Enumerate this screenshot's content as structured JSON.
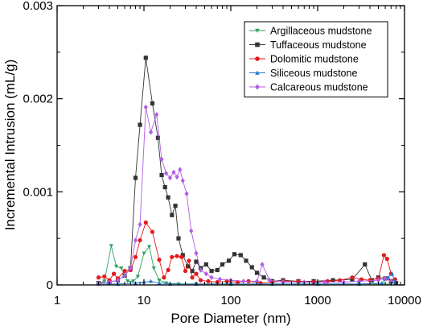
{
  "chart_data": {
    "type": "line",
    "xlabel": "Pore Diameter (nm)",
    "ylabel": "Incremental Intrusion (mL/g)",
    "xscale": "log",
    "xlim": [
      1,
      10000
    ],
    "ylim": [
      0,
      0.003
    ],
    "x_ticks": [
      "1",
      "10",
      "100",
      "1000",
      "10000"
    ],
    "y_ticks": [
      "0",
      "0.001",
      "0.002",
      "0.003"
    ],
    "legend_position": "top-right",
    "series": [
      {
        "name": "Argillaceous mudstone",
        "color": "#2ca25f",
        "marker": "triangle-down",
        "points": [
          [
            3,
            2e-05
          ],
          [
            3.5,
            4e-05
          ],
          [
            4.2,
            0.00042
          ],
          [
            4.8,
            0.0002
          ],
          [
            5.5,
            0.00018
          ],
          [
            6.5,
            4e-05
          ],
          [
            7.5,
            4e-05
          ],
          [
            8.5,
            9e-05
          ],
          [
            10,
            0.00034
          ],
          [
            11.5,
            0.00041
          ],
          [
            13,
            0.00018
          ],
          [
            15,
            5e-05
          ],
          [
            18,
            2e-05
          ],
          [
            25,
            1e-05
          ],
          [
            40,
            1e-05
          ],
          [
            100,
            1e-05
          ],
          [
            300,
            1e-05
          ],
          [
            1000,
            1e-05
          ],
          [
            3000,
            1e-05
          ],
          [
            7000,
            1e-05
          ]
        ]
      },
      {
        "name": "Tuffaceous mudstone",
        "color": "#333333",
        "marker": "square",
        "points": [
          [
            3,
            2e-05
          ],
          [
            4,
            3e-05
          ],
          [
            5,
            5e-05
          ],
          [
            6,
            0.0001
          ],
          [
            7,
            0.00018
          ],
          [
            8,
            0.00115
          ],
          [
            9,
            0.00172
          ],
          [
            10.5,
            0.00244
          ],
          [
            12.5,
            0.00195
          ],
          [
            14.5,
            0.00158
          ],
          [
            16,
            0.00118
          ],
          [
            17.5,
            0.00105
          ],
          [
            19,
            0.00094
          ],
          [
            21,
            0.00075
          ],
          [
            23,
            0.00085
          ],
          [
            25,
            0.0005
          ],
          [
            28,
            0.00032
          ],
          [
            32,
            0.0002
          ],
          [
            36,
            0.00015
          ],
          [
            40,
            0.00025
          ],
          [
            45,
            0.00018
          ],
          [
            52,
            0.00022
          ],
          [
            60,
            0.00015
          ],
          [
            70,
            0.00016
          ],
          [
            80,
            0.00022
          ],
          [
            95,
            0.00026
          ],
          [
            110,
            0.00033
          ],
          [
            130,
            0.00032
          ],
          [
            150,
            0.00026
          ],
          [
            175,
            0.00019
          ],
          [
            200,
            0.00013
          ],
          [
            240,
            8e-05
          ],
          [
            300,
            4e-05
          ],
          [
            400,
            5e-05
          ],
          [
            600,
            4e-05
          ],
          [
            900,
            4e-05
          ],
          [
            1500,
            5e-05
          ],
          [
            2500,
            6e-05
          ],
          [
            3500,
            0.00022
          ],
          [
            4200,
            5e-05
          ],
          [
            5000,
            8e-05
          ],
          [
            6000,
            7e-05
          ],
          [
            7000,
            4e-05
          ],
          [
            8000,
            2e-05
          ]
        ]
      },
      {
        "name": "Dolomitic mudstone",
        "color": "#e41a1c",
        "marker": "circle",
        "points": [
          [
            3,
            8e-05
          ],
          [
            3.5,
            9e-05
          ],
          [
            4,
            5e-05
          ],
          [
            4.5,
            0.00012
          ],
          [
            5,
            7e-05
          ],
          [
            6,
            0.00015
          ],
          [
            7,
            0.00016
          ],
          [
            8,
            0.0003
          ],
          [
            9,
            0.00048
          ],
          [
            10.5,
            0.00067
          ],
          [
            12.5,
            0.00057
          ],
          [
            15,
            0.00027
          ],
          [
            17,
            8e-05
          ],
          [
            19,
            0.00016
          ],
          [
            21,
            0.0003
          ],
          [
            24,
            0.00031
          ],
          [
            27,
            0.0003
          ],
          [
            30,
            0.00015
          ],
          [
            33,
            0.00026
          ],
          [
            36,
            8e-05
          ],
          [
            40,
            0.00012
          ],
          [
            45,
            5e-05
          ],
          [
            55,
            4e-05
          ],
          [
            70,
            3e-05
          ],
          [
            90,
            4e-05
          ],
          [
            120,
            3e-05
          ],
          [
            160,
            4e-05
          ],
          [
            220,
            2e-05
          ],
          [
            300,
            3e-05
          ],
          [
            400,
            4e-05
          ],
          [
            600,
            4e-05
          ],
          [
            900,
            3e-05
          ],
          [
            1300,
            4e-05
          ],
          [
            1800,
            5e-05
          ],
          [
            2500,
            8e-05
          ],
          [
            3200,
            6e-05
          ],
          [
            4000,
            5e-05
          ],
          [
            5000,
            7e-05
          ],
          [
            5800,
            0.00032
          ],
          [
            6300,
            0.00028
          ],
          [
            7000,
            0.00012
          ],
          [
            7800,
            6e-05
          ]
        ]
      },
      {
        "name": "Siliceous mudstone",
        "color": "#1f78d1",
        "marker": "triangle-up",
        "points": [
          [
            3,
            1e-05
          ],
          [
            5,
            1e-05
          ],
          [
            8,
            2e-05
          ],
          [
            10,
            3e-05
          ],
          [
            12,
            4e-05
          ],
          [
            15,
            2e-05
          ],
          [
            20,
            1e-05
          ],
          [
            40,
            1e-05
          ],
          [
            100,
            1e-05
          ],
          [
            300,
            1e-05
          ],
          [
            1000,
            1e-05
          ],
          [
            3000,
            1e-05
          ],
          [
            5500,
            2e-05
          ],
          [
            6500,
            8e-05
          ],
          [
            7200,
            0.00012
          ],
          [
            7800,
            3e-05
          ]
        ]
      },
      {
        "name": "Calcareous mudstone",
        "color": "#b25ce6",
        "marker": "diamond",
        "points": [
          [
            3,
            2e-05
          ],
          [
            4,
            3e-05
          ],
          [
            5,
            5e-05
          ],
          [
            6,
            0.0001
          ],
          [
            7,
            0.00018
          ],
          [
            8,
            0.00048
          ],
          [
            9,
            0.00065
          ],
          [
            10.5,
            0.00191
          ],
          [
            12,
            0.00164
          ],
          [
            14,
            0.00183
          ],
          [
            16,
            0.00135
          ],
          [
            18,
            0.0012
          ],
          [
            20,
            0.00115
          ],
          [
            22,
            0.00121
          ],
          [
            24,
            0.00116
          ],
          [
            26,
            0.00124
          ],
          [
            28,
            0.00112
          ],
          [
            31,
            0.00098
          ],
          [
            35,
            0.00058
          ],
          [
            40,
            0.00034
          ],
          [
            45,
            0.00016
          ],
          [
            52,
            0.00012
          ],
          [
            60,
            8e-05
          ],
          [
            75,
            6e-05
          ],
          [
            100,
            5e-05
          ],
          [
            140,
            4e-05
          ],
          [
            200,
            4e-05
          ],
          [
            230,
            0.00022
          ],
          [
            280,
            5e-05
          ],
          [
            400,
            3e-05
          ],
          [
            700,
            3e-05
          ],
          [
            1200,
            3e-05
          ],
          [
            2000,
            3e-05
          ],
          [
            3000,
            4e-05
          ],
          [
            5000,
            5e-05
          ],
          [
            6000,
            7e-05
          ],
          [
            7000,
            4e-05
          ]
        ]
      }
    ]
  }
}
